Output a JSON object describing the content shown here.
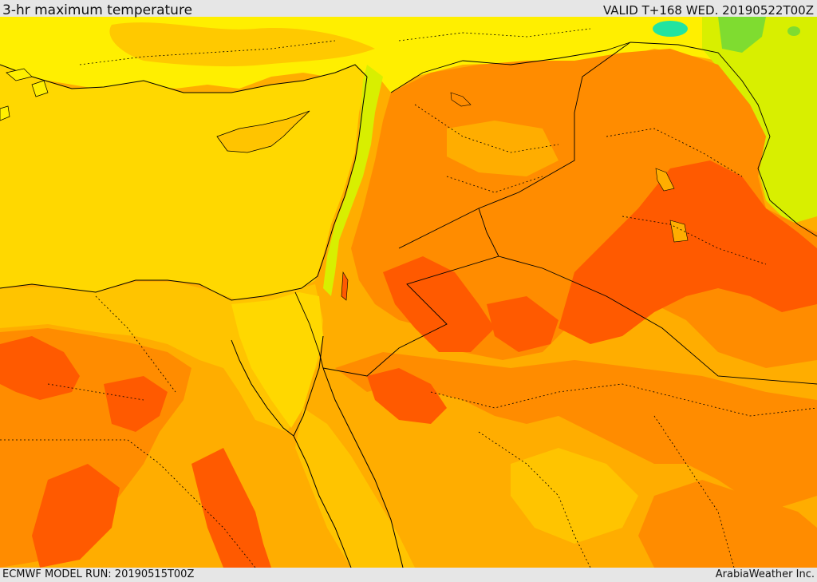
{
  "header": {
    "title": "3-hr maximum temperature",
    "valid": "VALID T+168 WED. 20190522T00Z"
  },
  "footer": {
    "model_run": "ECMWF MODEL RUN: 20190515T00Z",
    "credit": "ArabiaWeather Inc."
  },
  "colors": {
    "sea": "#ffd800",
    "band_yellow": "#ffef00",
    "band_lightgreen": "#d8ef00",
    "band_green": "#7fdc30",
    "band_cyan": "#22e4a0",
    "band_amber": "#ffc400",
    "band_orange_light": "#ffad00",
    "band_orange": "#ff8c00",
    "band_red_orange": "#ff5a00",
    "border": "#000000"
  }
}
